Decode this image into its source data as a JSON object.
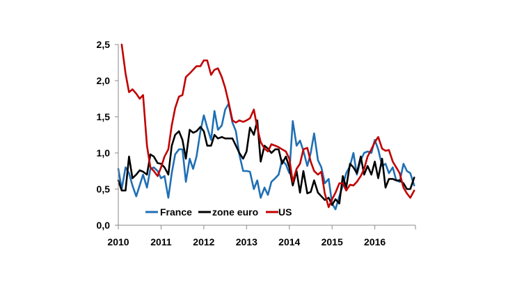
{
  "chart_data": {
    "type": "line",
    "title": "",
    "xlabel": "",
    "ylabel": "",
    "xlim": [
      2010.0,
      2016.95
    ],
    "ylim": [
      0,
      2.5
    ],
    "x_ticks": [
      2010,
      2011,
      2012,
      2013,
      2014,
      2015,
      2016
    ],
    "x_tick_labels": [
      "2010",
      "2011",
      "2012",
      "2013",
      "2014",
      "2015",
      "2016"
    ],
    "y_ticks": [
      0,
      0.5,
      1,
      1.5,
      2,
      2.5
    ],
    "y_tick_labels": [
      "0,0",
      "0,5",
      "1,0",
      "1,5",
      "2,0",
      "2,5"
    ],
    "grid": false,
    "legend_position": "bottom-center",
    "series": [
      {
        "name": "France",
        "color": "#1f6fb4",
        "points": [
          [
            2010.0,
            0.78
          ],
          [
            2010.08,
            0.5
          ],
          [
            2010.17,
            0.8
          ],
          [
            2010.25,
            0.72
          ],
          [
            2010.33,
            0.55
          ],
          [
            2010.42,
            0.4
          ],
          [
            2010.5,
            0.55
          ],
          [
            2010.58,
            0.7
          ],
          [
            2010.67,
            0.52
          ],
          [
            2010.75,
            0.78
          ],
          [
            2010.83,
            0.8
          ],
          [
            2010.92,
            0.75
          ],
          [
            2011.0,
            0.65
          ],
          [
            2011.08,
            0.68
          ],
          [
            2011.17,
            0.38
          ],
          [
            2011.25,
            0.72
          ],
          [
            2011.33,
            0.98
          ],
          [
            2011.42,
            1.05
          ],
          [
            2011.5,
            1.05
          ],
          [
            2011.58,
            0.6
          ],
          [
            2011.67,
            0.92
          ],
          [
            2011.75,
            0.78
          ],
          [
            2011.83,
            0.95
          ],
          [
            2011.92,
            1.3
          ],
          [
            2012.0,
            1.52
          ],
          [
            2012.08,
            1.35
          ],
          [
            2012.17,
            1.18
          ],
          [
            2012.25,
            1.58
          ],
          [
            2012.33,
            1.32
          ],
          [
            2012.42,
            1.38
          ],
          [
            2012.5,
            1.6
          ],
          [
            2012.58,
            1.68
          ],
          [
            2012.67,
            1.42
          ],
          [
            2012.75,
            1.3
          ],
          [
            2012.83,
            0.98
          ],
          [
            2012.92,
            0.75
          ],
          [
            2013.0,
            0.75
          ],
          [
            2013.08,
            0.74
          ],
          [
            2013.17,
            0.5
          ],
          [
            2013.25,
            0.62
          ],
          [
            2013.33,
            0.38
          ],
          [
            2013.42,
            0.52
          ],
          [
            2013.5,
            0.42
          ],
          [
            2013.58,
            0.6
          ],
          [
            2013.67,
            0.65
          ],
          [
            2013.75,
            0.7
          ],
          [
            2013.83,
            0.9
          ],
          [
            2013.92,
            0.84
          ],
          [
            2014.0,
            0.72
          ],
          [
            2014.08,
            1.44
          ],
          [
            2014.17,
            1.1
          ],
          [
            2014.25,
            1.17
          ],
          [
            2014.33,
            1.03
          ],
          [
            2014.42,
            0.82
          ],
          [
            2014.5,
            1.0
          ],
          [
            2014.58,
            1.27
          ],
          [
            2014.67,
            0.9
          ],
          [
            2014.75,
            0.8
          ],
          [
            2014.83,
            0.58
          ],
          [
            2014.92,
            0.64
          ],
          [
            2015.0,
            0.3
          ],
          [
            2015.08,
            0.22
          ],
          [
            2015.17,
            0.4
          ],
          [
            2015.25,
            0.55
          ],
          [
            2015.33,
            0.72
          ],
          [
            2015.42,
            0.82
          ],
          [
            2015.5,
            1.0
          ],
          [
            2015.58,
            0.7
          ],
          [
            2015.67,
            0.9
          ],
          [
            2015.75,
            1.0
          ],
          [
            2015.83,
            1.02
          ],
          [
            2015.92,
            1.0
          ],
          [
            2016.0,
            1.18
          ],
          [
            2016.08,
            1.05
          ],
          [
            2016.17,
            0.82
          ],
          [
            2016.25,
            0.85
          ],
          [
            2016.33,
            0.72
          ],
          [
            2016.42,
            0.8
          ],
          [
            2016.5,
            0.62
          ],
          [
            2016.58,
            0.6
          ],
          [
            2016.67,
            0.85
          ],
          [
            2016.75,
            0.75
          ],
          [
            2016.83,
            0.72
          ],
          [
            2016.92,
            0.55
          ]
        ]
      },
      {
        "name": "zone euro",
        "color": "#000000",
        "points": [
          [
            2010.0,
            0.62
          ],
          [
            2010.08,
            0.48
          ],
          [
            2010.17,
            0.48
          ],
          [
            2010.25,
            0.95
          ],
          [
            2010.33,
            0.65
          ],
          [
            2010.42,
            0.7
          ],
          [
            2010.5,
            0.76
          ],
          [
            2010.58,
            0.74
          ],
          [
            2010.67,
            0.7
          ],
          [
            2010.75,
            0.98
          ],
          [
            2010.83,
            0.95
          ],
          [
            2010.92,
            0.86
          ],
          [
            2011.0,
            0.85
          ],
          [
            2011.08,
            0.8
          ],
          [
            2011.17,
            0.7
          ],
          [
            2011.25,
            1.1
          ],
          [
            2011.33,
            1.25
          ],
          [
            2011.42,
            1.3
          ],
          [
            2011.5,
            1.18
          ],
          [
            2011.58,
            0.92
          ],
          [
            2011.67,
            1.32
          ],
          [
            2011.75,
            1.28
          ],
          [
            2011.83,
            1.3
          ],
          [
            2011.92,
            1.36
          ],
          [
            2012.0,
            1.3
          ],
          [
            2012.08,
            1.1
          ],
          [
            2012.17,
            1.1
          ],
          [
            2012.25,
            1.25
          ],
          [
            2012.33,
            1.2
          ],
          [
            2012.42,
            1.22
          ],
          [
            2012.5,
            1.2
          ],
          [
            2012.58,
            1.2
          ],
          [
            2012.67,
            1.2
          ],
          [
            2012.75,
            1.1
          ],
          [
            2012.83,
            1.0
          ],
          [
            2012.92,
            0.92
          ],
          [
            2013.0,
            1.02
          ],
          [
            2013.08,
            1.35
          ],
          [
            2013.17,
            1.25
          ],
          [
            2013.25,
            1.45
          ],
          [
            2013.33,
            0.88
          ],
          [
            2013.42,
            1.1
          ],
          [
            2013.5,
            1.06
          ],
          [
            2013.58,
            1.0
          ],
          [
            2013.67,
            1.05
          ],
          [
            2013.75,
            1.05
          ],
          [
            2013.83,
            0.85
          ],
          [
            2013.92,
            0.95
          ],
          [
            2014.0,
            0.8
          ],
          [
            2014.08,
            0.55
          ],
          [
            2014.17,
            0.75
          ],
          [
            2014.25,
            0.45
          ],
          [
            2014.33,
            0.75
          ],
          [
            2014.42,
            0.44
          ],
          [
            2014.5,
            0.46
          ],
          [
            2014.58,
            0.62
          ],
          [
            2014.67,
            0.45
          ],
          [
            2014.75,
            0.4
          ],
          [
            2014.83,
            0.35
          ],
          [
            2014.92,
            0.38
          ],
          [
            2015.0,
            0.28
          ],
          [
            2015.08,
            0.36
          ],
          [
            2015.17,
            0.3
          ],
          [
            2015.25,
            0.68
          ],
          [
            2015.33,
            0.52
          ],
          [
            2015.42,
            0.85
          ],
          [
            2015.5,
            0.8
          ],
          [
            2015.58,
            0.72
          ],
          [
            2015.67,
            0.95
          ],
          [
            2015.75,
            0.7
          ],
          [
            2015.83,
            0.82
          ],
          [
            2015.92,
            0.7
          ],
          [
            2016.0,
            0.88
          ],
          [
            2016.08,
            0.65
          ],
          [
            2016.17,
            0.92
          ],
          [
            2016.25,
            0.52
          ],
          [
            2016.33,
            0.64
          ],
          [
            2016.42,
            0.64
          ],
          [
            2016.5,
            0.62
          ],
          [
            2016.58,
            0.62
          ],
          [
            2016.67,
            0.58
          ],
          [
            2016.75,
            0.5
          ],
          [
            2016.83,
            0.5
          ],
          [
            2016.92,
            0.66
          ]
        ]
      },
      {
        "name": "US",
        "color": "#c00000",
        "points": [
          [
            2010.08,
            2.5
          ],
          [
            2010.17,
            2.1
          ],
          [
            2010.25,
            1.84
          ],
          [
            2010.33,
            1.88
          ],
          [
            2010.42,
            1.82
          ],
          [
            2010.5,
            1.75
          ],
          [
            2010.58,
            1.8
          ],
          [
            2010.67,
            1.1
          ],
          [
            2010.75,
            0.8
          ],
          [
            2010.83,
            0.75
          ],
          [
            2010.92,
            0.68
          ],
          [
            2011.0,
            0.8
          ],
          [
            2011.08,
            0.95
          ],
          [
            2011.17,
            1.05
          ],
          [
            2011.25,
            1.38
          ],
          [
            2011.33,
            1.62
          ],
          [
            2011.42,
            1.78
          ],
          [
            2011.5,
            1.8
          ],
          [
            2011.58,
            2.05
          ],
          [
            2011.67,
            2.1
          ],
          [
            2011.75,
            2.15
          ],
          [
            2011.83,
            2.2
          ],
          [
            2011.92,
            2.2
          ],
          [
            2012.0,
            2.28
          ],
          [
            2012.08,
            2.28
          ],
          [
            2012.17,
            2.08
          ],
          [
            2012.25,
            2.15
          ],
          [
            2012.33,
            2.17
          ],
          [
            2012.42,
            2.05
          ],
          [
            2012.5,
            1.9
          ],
          [
            2012.58,
            1.7
          ],
          [
            2012.67,
            1.45
          ],
          [
            2012.75,
            1.42
          ],
          [
            2012.83,
            1.45
          ],
          [
            2012.92,
            1.43
          ],
          [
            2013.0,
            1.45
          ],
          [
            2013.08,
            1.48
          ],
          [
            2013.17,
            1.6
          ],
          [
            2013.25,
            1.35
          ],
          [
            2013.33,
            1.15
          ],
          [
            2013.42,
            1.06
          ],
          [
            2013.5,
            1.02
          ],
          [
            2013.58,
            1.12
          ],
          [
            2013.67,
            1.1
          ],
          [
            2013.75,
            1.08
          ],
          [
            2013.83,
            1.05
          ],
          [
            2013.92,
            1.02
          ],
          [
            2014.0,
            0.92
          ],
          [
            2014.08,
            0.6
          ],
          [
            2014.17,
            0.78
          ],
          [
            2014.25,
            0.85
          ],
          [
            2014.33,
            1.05
          ],
          [
            2014.42,
            1.07
          ],
          [
            2014.5,
            0.88
          ],
          [
            2014.58,
            0.75
          ],
          [
            2014.67,
            0.7
          ],
          [
            2014.75,
            0.74
          ],
          [
            2014.83,
            0.44
          ],
          [
            2014.92,
            0.25
          ],
          [
            2015.0,
            0.36
          ],
          [
            2015.08,
            0.45
          ],
          [
            2015.17,
            0.58
          ],
          [
            2015.25,
            0.58
          ],
          [
            2015.33,
            0.48
          ],
          [
            2015.42,
            0.56
          ],
          [
            2015.5,
            0.55
          ],
          [
            2015.58,
            0.6
          ],
          [
            2015.67,
            0.68
          ],
          [
            2015.75,
            0.78
          ],
          [
            2015.83,
            0.95
          ],
          [
            2015.92,
            1.05
          ],
          [
            2016.0,
            1.15
          ],
          [
            2016.08,
            1.22
          ],
          [
            2016.17,
            1.06
          ],
          [
            2016.25,
            1.03
          ],
          [
            2016.33,
            1.04
          ],
          [
            2016.42,
            0.88
          ],
          [
            2016.5,
            0.8
          ],
          [
            2016.58,
            0.72
          ],
          [
            2016.67,
            0.52
          ],
          [
            2016.75,
            0.44
          ],
          [
            2016.83,
            0.38
          ],
          [
            2016.92,
            0.48
          ]
        ]
      }
    ]
  }
}
